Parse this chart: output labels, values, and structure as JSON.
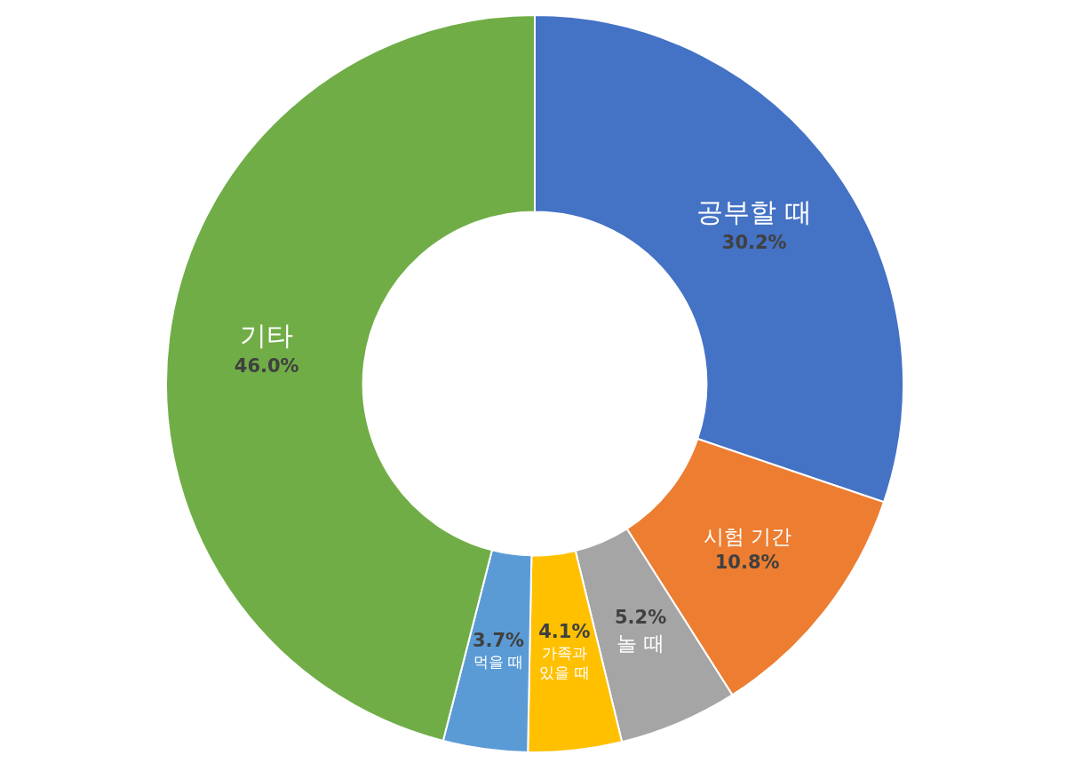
{
  "chart_data": {
    "type": "donut",
    "categories": [
      "공부할 때",
      "시험 기간",
      "놀 때",
      "가족과 있을 때",
      "먹을 때",
      "기타"
    ],
    "values": [
      30.2,
      10.8,
      5.2,
      4.1,
      3.7,
      46.0
    ],
    "colors": [
      "#4472c4",
      "#ed7d31",
      "#a5a5a5",
      "#ffc000",
      "#5b9bd5",
      "#70ad47"
    ],
    "value_labels": [
      "30.2%",
      "10.8%",
      "5.2%",
      "4.1%",
      "3.7%",
      "46.0%"
    ]
  }
}
